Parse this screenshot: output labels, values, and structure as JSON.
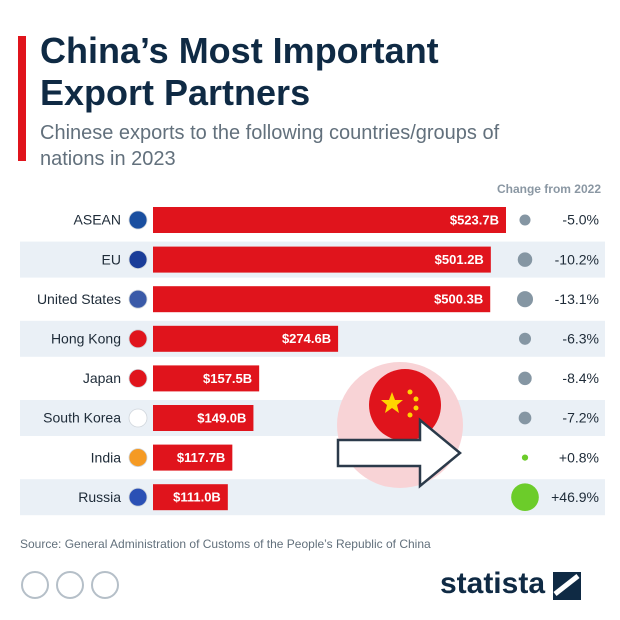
{
  "chart_data": {
    "type": "bar",
    "title": "China’s Most Important Export Partners",
    "subtitle": "Chinese exports to the following countries/groups of nations in 2023",
    "categories": [
      "ASEAN",
      "EU",
      "United States",
      "Hong Kong",
      "Japan",
      "South Korea",
      "India",
      "Russia"
    ],
    "values": [
      523.7,
      501.2,
      500.3,
      274.6,
      157.5,
      149.0,
      117.7,
      111.0
    ],
    "value_labels": [
      "$523.7B",
      "$501.2B",
      "$500.3B",
      "$274.6B",
      "$157.5B",
      "$149.0B",
      "$117.7B",
      "$111.0B"
    ],
    "color": "#e0141c",
    "change": {
      "name": "Change from 2022",
      "values": [
        -5.0,
        -10.2,
        -13.1,
        -6.3,
        -8.4,
        -7.2,
        0.8,
        46.9
      ],
      "value_labels": [
        "-5.0%",
        "-10.2%",
        "-13.1%",
        "-6.3%",
        "-8.4%",
        "-7.2%",
        "+0.8%",
        "+46.9%"
      ],
      "negative_color": "#8596a3",
      "positive_color": "#6ccc2a"
    },
    "source": "Source: General Administration of Customs of the People’s Republic of China",
    "brand": "statista"
  }
}
